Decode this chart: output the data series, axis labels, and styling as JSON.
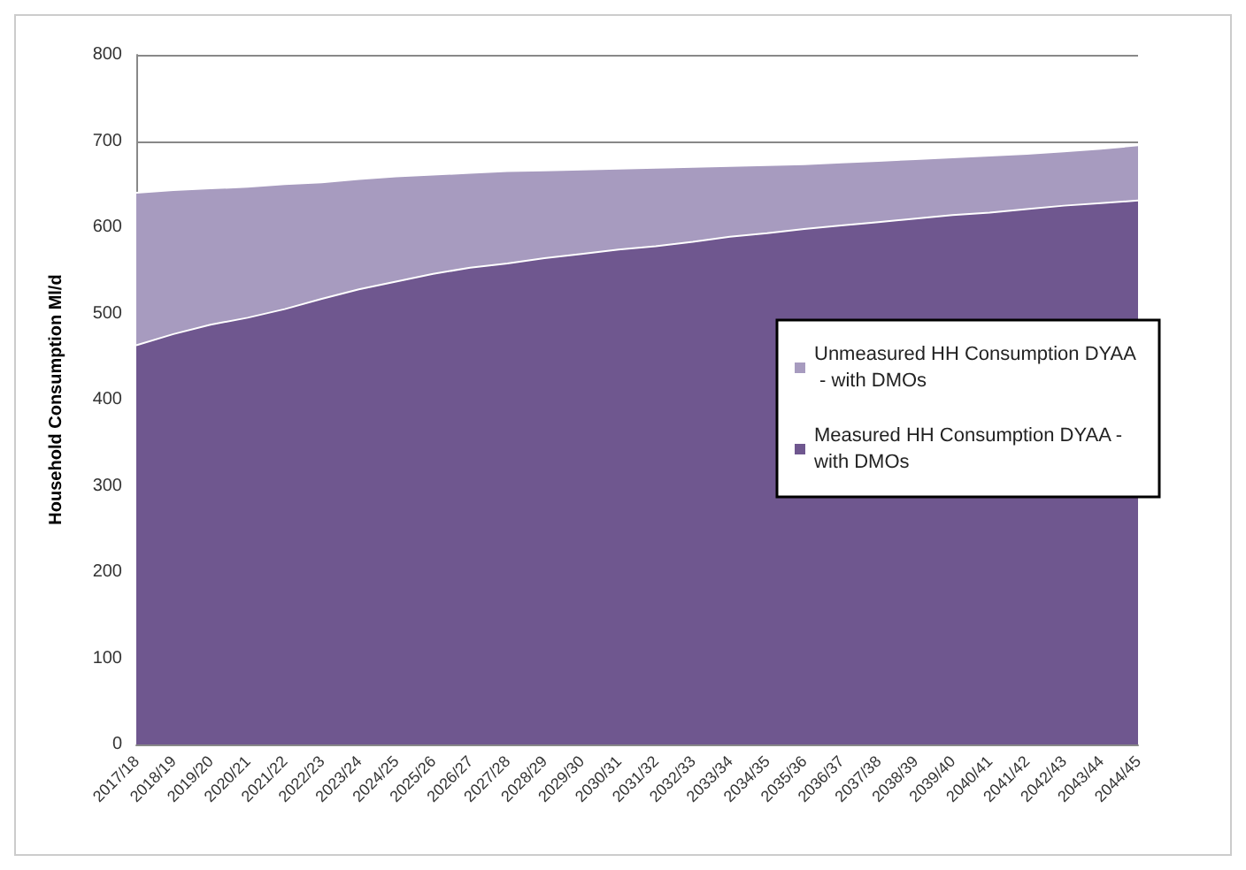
{
  "chart_data": {
    "type": "area",
    "ylabel": "Household Consumption Ml/d",
    "stacked": true,
    "categories": [
      "2017/18",
      "2018/19",
      "2019/20",
      "2020/21",
      "2021/22",
      "2022/23",
      "2023/24",
      "2024/25",
      "2025/26",
      "2026/27",
      "2027/28",
      "2028/29",
      "2029/30",
      "2030/31",
      "2031/32",
      "2032/33",
      "2033/34",
      "2034/35",
      "2035/36",
      "2036/37",
      "2037/38",
      "2038/39",
      "2039/40",
      "2040/41",
      "2041/42",
      "2042/43",
      "2043/44",
      "2044/45"
    ],
    "series": [
      {
        "name": "Measured HH Consumption DYAA - with DMOs",
        "color": "#6f578f",
        "values": [
          463,
          476,
          487,
          495,
          505,
          517,
          528,
          537,
          546,
          553,
          558,
          564,
          569,
          574,
          578,
          583,
          589,
          593,
          598,
          602,
          606,
          610,
          614,
          617,
          621,
          625,
          628,
          631
        ]
      },
      {
        "name": "Unmeasured HH Consumption DYAA - with DMOs",
        "color": "#a79bbf",
        "values": [
          177,
          167,
          158,
          152,
          145,
          135,
          128,
          122,
          115,
          110,
          107,
          102,
          98,
          94,
          91,
          87,
          82,
          79,
          75,
          73,
          71,
          69,
          67,
          66,
          64,
          63,
          63,
          64
        ]
      }
    ],
    "ylim": [
      0,
      800
    ],
    "yticks": [
      0,
      100,
      200,
      300,
      400,
      500,
      600,
      700,
      800
    ],
    "grid": "y",
    "legend": "right"
  }
}
